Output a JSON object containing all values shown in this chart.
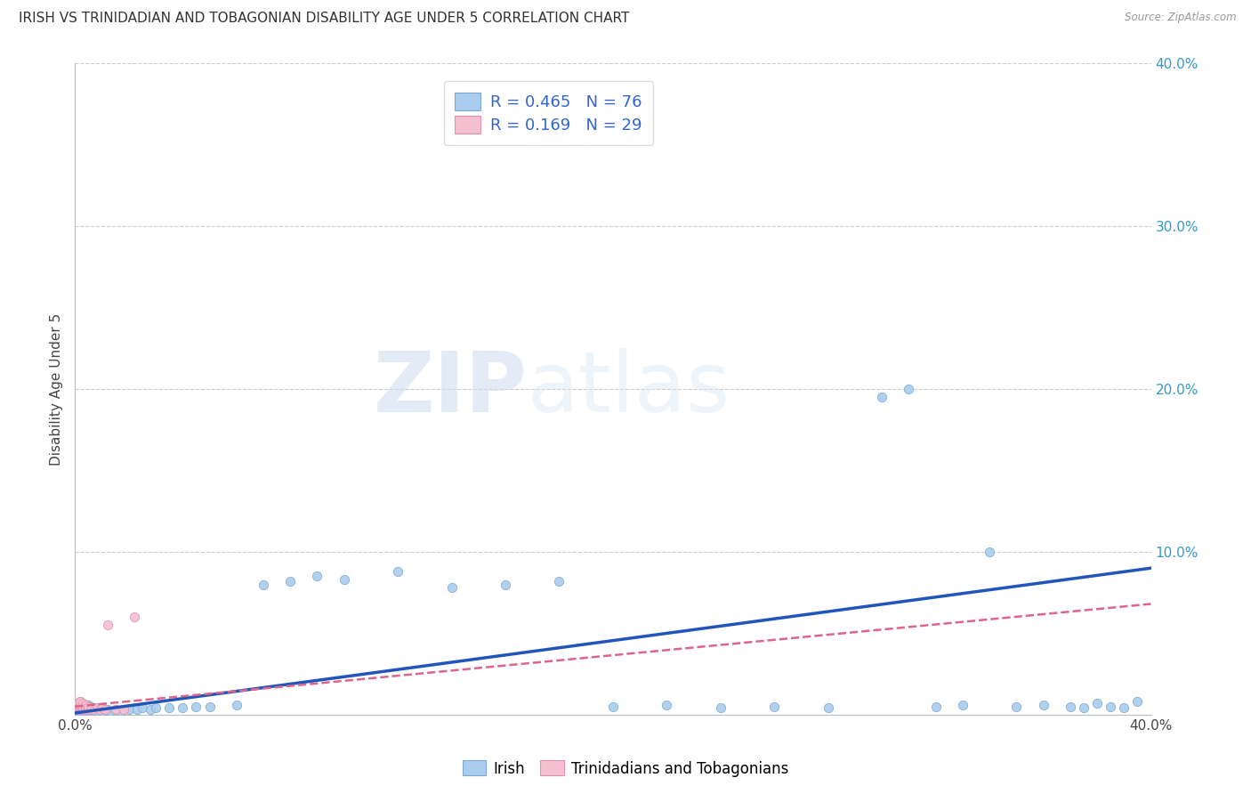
{
  "title": "IRISH VS TRINIDADIAN AND TOBAGONIAN DISABILITY AGE UNDER 5 CORRELATION CHART",
  "source_text": "Source: ZipAtlas.com",
  "ylabel": "Disability Age Under 5",
  "xlim": [
    0.0,
    0.4
  ],
  "ylim": [
    0.0,
    0.4
  ],
  "irish_color": "#aaccee",
  "irish_edge_color": "#7aaad0",
  "tt_color": "#f5c0d0",
  "tt_edge_color": "#e090b0",
  "irish_line_color": "#2255bb",
  "tt_line_color": "#dd6688",
  "watermark_zip": "ZIP",
  "watermark_atlas": "atlas",
  "legend_irish": "R = 0.465   N = 76",
  "legend_tt": "R = 0.169   N = 29",
  "bottom_legend_irish": "Irish",
  "bottom_legend_tt": "Trinidadians and Tobagonians",
  "irish_x": [
    0.001,
    0.001,
    0.001,
    0.001,
    0.001,
    0.002,
    0.002,
    0.002,
    0.002,
    0.002,
    0.002,
    0.002,
    0.003,
    0.003,
    0.003,
    0.003,
    0.003,
    0.004,
    0.004,
    0.004,
    0.004,
    0.005,
    0.005,
    0.005,
    0.005,
    0.006,
    0.006,
    0.006,
    0.007,
    0.007,
    0.008,
    0.008,
    0.009,
    0.01,
    0.01,
    0.011,
    0.012,
    0.013,
    0.015,
    0.017,
    0.02,
    0.023,
    0.025,
    0.028,
    0.03,
    0.035,
    0.04,
    0.045,
    0.05,
    0.06,
    0.07,
    0.08,
    0.09,
    0.1,
    0.12,
    0.14,
    0.16,
    0.18,
    0.2,
    0.22,
    0.24,
    0.26,
    0.28,
    0.3,
    0.31,
    0.32,
    0.33,
    0.34,
    0.35,
    0.36,
    0.37,
    0.375,
    0.38,
    0.385,
    0.39,
    0.395
  ],
  "irish_y": [
    0.003,
    0.004,
    0.005,
    0.006,
    0.007,
    0.002,
    0.003,
    0.004,
    0.005,
    0.006,
    0.007,
    0.008,
    0.002,
    0.003,
    0.004,
    0.005,
    0.007,
    0.002,
    0.004,
    0.005,
    0.006,
    0.002,
    0.003,
    0.004,
    0.006,
    0.002,
    0.003,
    0.005,
    0.002,
    0.004,
    0.002,
    0.004,
    0.003,
    0.002,
    0.004,
    0.003,
    0.003,
    0.002,
    0.003,
    0.002,
    0.003,
    0.003,
    0.004,
    0.003,
    0.004,
    0.004,
    0.004,
    0.005,
    0.005,
    0.006,
    0.08,
    0.082,
    0.085,
    0.083,
    0.088,
    0.078,
    0.08,
    0.082,
    0.005,
    0.006,
    0.004,
    0.005,
    0.004,
    0.195,
    0.2,
    0.005,
    0.006,
    0.1,
    0.005,
    0.006,
    0.005,
    0.004,
    0.007,
    0.005,
    0.004,
    0.008
  ],
  "tt_x": [
    0.001,
    0.001,
    0.001,
    0.001,
    0.002,
    0.002,
    0.002,
    0.002,
    0.002,
    0.002,
    0.003,
    0.003,
    0.003,
    0.003,
    0.004,
    0.004,
    0.004,
    0.005,
    0.005,
    0.006,
    0.007,
    0.008,
    0.009,
    0.01,
    0.011,
    0.012,
    0.015,
    0.018,
    0.022
  ],
  "tt_y": [
    0.004,
    0.005,
    0.006,
    0.007,
    0.003,
    0.004,
    0.005,
    0.006,
    0.007,
    0.008,
    0.003,
    0.004,
    0.005,
    0.007,
    0.003,
    0.005,
    0.006,
    0.003,
    0.005,
    0.003,
    0.003,
    0.004,
    0.003,
    0.004,
    0.003,
    0.055,
    0.003,
    0.003,
    0.06
  ],
  "irish_trend_x": [
    0.0,
    0.4
  ],
  "irish_trend_y": [
    0.001,
    0.09
  ],
  "tt_trend_x": [
    0.0,
    0.4
  ],
  "tt_trend_y": [
    0.005,
    0.068
  ]
}
